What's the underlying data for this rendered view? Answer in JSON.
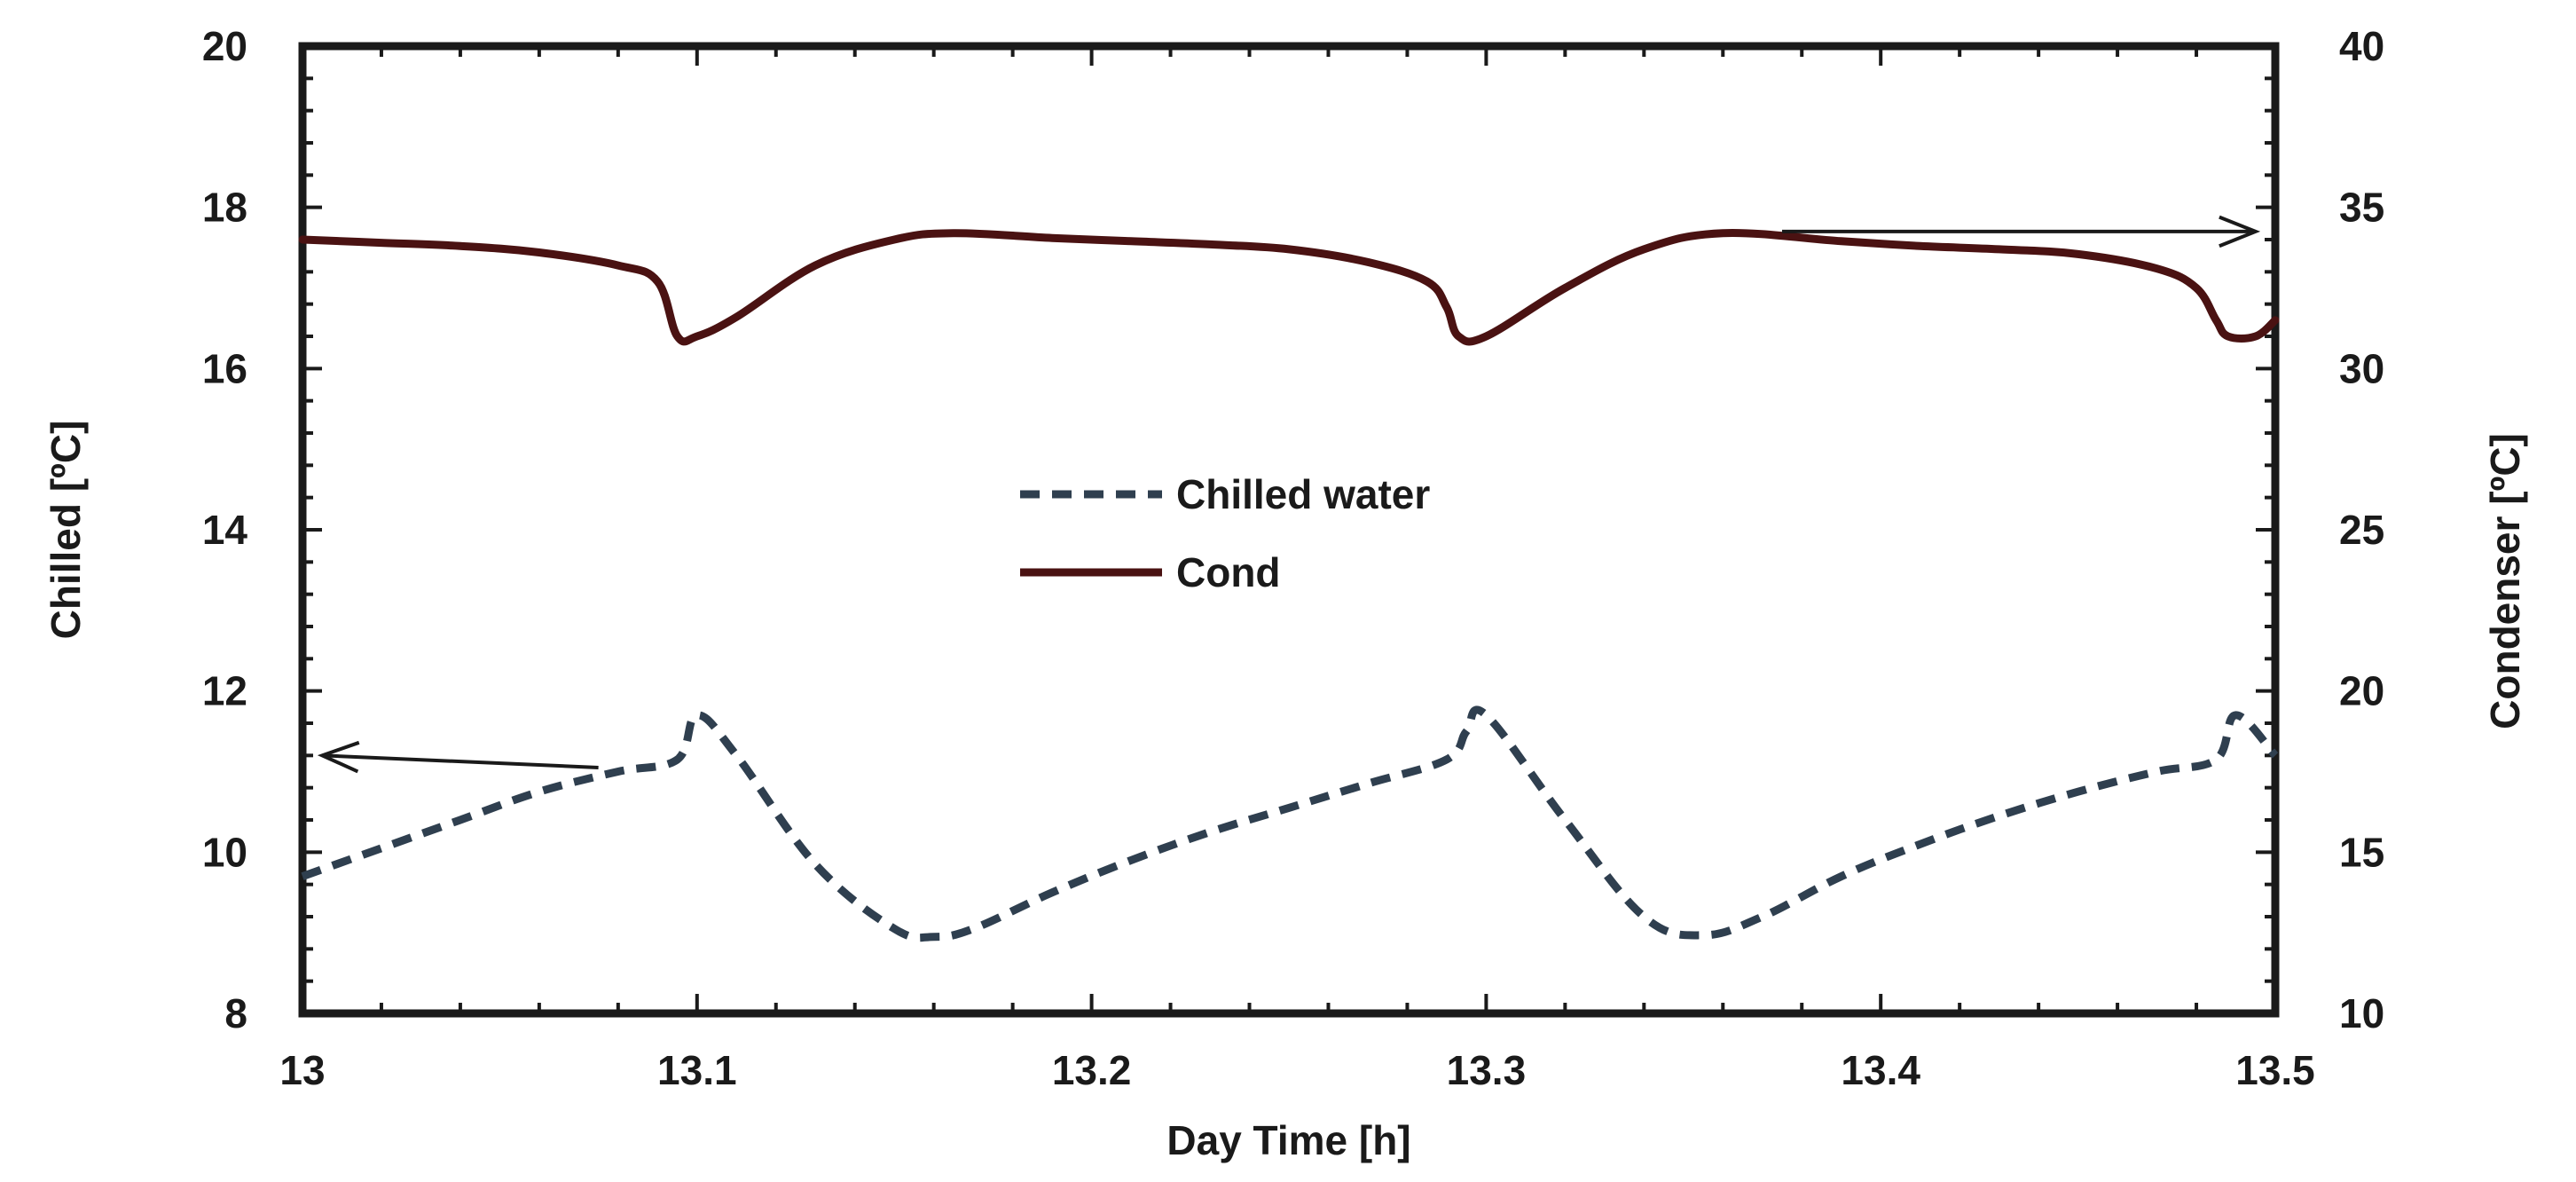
{
  "chart_data": {
    "type": "line",
    "title": "",
    "xlabel": "Day Time [h]",
    "ylabel": "Chilled [ºC]",
    "ylabel_right": "Condenser [ºC]",
    "xlim": [
      13,
      13.5
    ],
    "ylim": [
      8,
      20
    ],
    "ylim_right": [
      10,
      40
    ],
    "x_ticks": [
      "13",
      "13.1",
      "13.2",
      "13.3",
      "13.4",
      "13.5"
    ],
    "y_ticks": [
      "8",
      "10",
      "12",
      "14",
      "16",
      "18",
      "20"
    ],
    "y_ticks_right": [
      "10",
      "15",
      "20",
      "25",
      "30",
      "35",
      "40"
    ],
    "grid": false,
    "legend_position": "center",
    "series": [
      {
        "name": "Chilled water",
        "axis": "left",
        "style": "dashed",
        "color": "#2f3f4f",
        "x": [
          13.0,
          13.02,
          13.04,
          13.06,
          13.08,
          13.095,
          13.1,
          13.11,
          13.13,
          13.15,
          13.16,
          13.17,
          13.19,
          13.21,
          13.23,
          13.25,
          13.27,
          13.29,
          13.295,
          13.3,
          13.32,
          13.34,
          13.355,
          13.37,
          13.39,
          13.41,
          13.43,
          13.45,
          13.47,
          13.485,
          13.49,
          13.5
        ],
        "values": [
          9.7,
          10.05,
          10.4,
          10.75,
          11.0,
          11.15,
          11.7,
          11.2,
          9.85,
          9.05,
          8.95,
          9.05,
          9.5,
          9.9,
          10.25,
          10.55,
          10.85,
          11.15,
          11.5,
          11.7,
          10.4,
          9.2,
          8.97,
          9.2,
          9.7,
          10.1,
          10.45,
          10.75,
          11.0,
          11.15,
          11.7,
          11.2
        ]
      },
      {
        "name": "Cond",
        "axis": "right",
        "style": "solid",
        "color": "#4a1212",
        "x": [
          13.0,
          13.02,
          13.04,
          13.06,
          13.08,
          13.09,
          13.095,
          13.1,
          13.11,
          13.13,
          13.15,
          13.165,
          13.19,
          13.21,
          13.23,
          13.25,
          13.27,
          13.285,
          13.29,
          13.293,
          13.3,
          13.32,
          13.34,
          13.36,
          13.39,
          13.41,
          13.43,
          13.45,
          13.47,
          13.48,
          13.485,
          13.488,
          13.495,
          13.5
        ],
        "values": [
          34.0,
          33.9,
          33.8,
          33.6,
          33.2,
          32.7,
          31.0,
          31.0,
          31.6,
          33.2,
          34.0,
          34.2,
          34.05,
          33.95,
          33.85,
          33.7,
          33.3,
          32.7,
          31.9,
          31.0,
          31.0,
          32.5,
          33.7,
          34.2,
          33.95,
          33.8,
          33.7,
          33.55,
          33.1,
          32.5,
          31.5,
          31.0,
          31.0,
          31.5
        ]
      }
    ],
    "legend": [
      {
        "label": "Chilled water",
        "style": "dashed"
      },
      {
        "label": "Cond",
        "style": "solid"
      }
    ],
    "annotations": [
      {
        "type": "arrow",
        "points_to": "left axis",
        "from": [
          13.075,
          11.05
        ],
        "to": [
          13.005,
          11.2
        ],
        "axis": "left"
      },
      {
        "type": "arrow",
        "points_to": "right axis",
        "from": [
          13.375,
          34.25
        ],
        "to": [
          13.495,
          34.25
        ],
        "axis": "right"
      }
    ]
  }
}
